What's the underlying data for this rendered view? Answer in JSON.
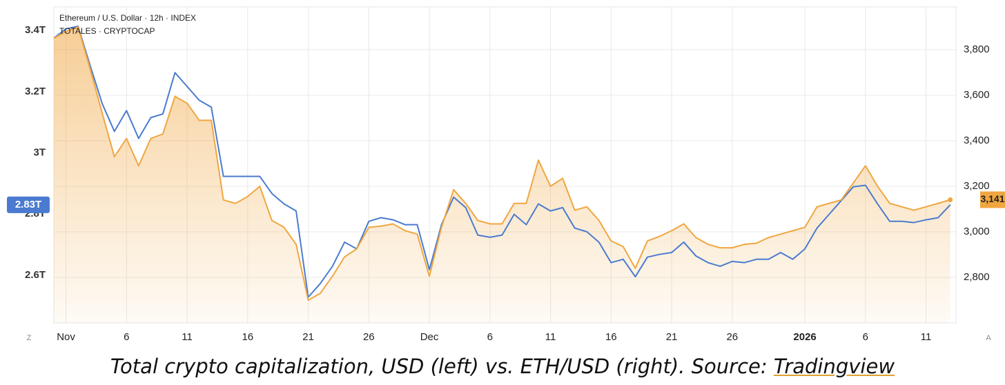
{
  "chart_data": {
    "type": "line",
    "categories": [
      null,
      "Nov",
      null,
      null,
      null,
      null,
      "6",
      null,
      null,
      null,
      null,
      "11",
      null,
      null,
      null,
      null,
      "16",
      null,
      null,
      null,
      null,
      "21",
      null,
      null,
      null,
      null,
      "26",
      null,
      null,
      null,
      null,
      "Dec",
      null,
      null,
      null,
      null,
      "6",
      null,
      null,
      null,
      null,
      "11",
      null,
      null,
      null,
      null,
      "16",
      null,
      null,
      null,
      null,
      "21",
      null,
      null,
      null,
      null,
      "26",
      null,
      null,
      null,
      null,
      null,
      "2026",
      null,
      null,
      null,
      null,
      "6",
      null,
      null,
      null,
      null,
      "11",
      null,
      null
    ],
    "series": [
      {
        "name": "Ethereum / U.S. Dollar · 12h · INDEX",
        "color": "#f0a640",
        "axis": "y2",
        "values": [
          3850,
          3880,
          3900,
          3715,
          3520,
          3330,
          3410,
          3290,
          3410,
          3430,
          3595,
          3565,
          3490,
          3490,
          3140,
          3125,
          3155,
          3200,
          3050,
          3020,
          2945,
          2700,
          2730,
          2805,
          2890,
          2925,
          3020,
          3025,
          3035,
          3005,
          2990,
          2805,
          3020,
          3185,
          3125,
          3050,
          3035,
          3035,
          3125,
          3125,
          3315,
          3200,
          3235,
          3095,
          3110,
          3050,
          2960,
          2935,
          2840,
          2960,
          2980,
          3005,
          3035,
          2975,
          2945,
          2930,
          2930,
          2945,
          2950,
          2975,
          2990,
          3005,
          3020,
          3110,
          3125,
          3140,
          3215,
          3290,
          3200,
          3125,
          3110,
          3095,
          3110,
          3125,
          3141
        ],
        "value_labels": [
          null,
          null,
          null,
          null,
          null,
          null,
          null,
          null,
          null,
          null,
          null,
          null,
          null,
          null,
          null,
          null,
          null,
          null,
          null,
          null,
          null,
          null,
          null,
          null,
          null,
          null,
          null,
          null,
          null,
          null,
          null,
          null,
          null,
          null,
          null,
          null,
          null,
          null,
          null,
          null,
          null,
          null,
          null,
          null,
          null,
          null,
          null,
          null,
          null,
          null,
          null,
          null,
          null,
          null,
          null,
          null,
          null,
          null,
          null,
          null,
          null,
          null,
          null,
          null,
          null,
          null,
          null,
          null,
          null,
          null,
          null,
          null,
          null,
          null,
          "3,141"
        ]
      },
      {
        "name": "TOTALES · CRYPTOCAP",
        "color": "#4a7bd0",
        "axis": "y",
        "values": [
          3.375,
          3.405,
          3.414,
          3.285,
          3.16,
          3.07,
          3.138,
          3.047,
          3.115,
          3.127,
          3.262,
          3.217,
          3.172,
          3.149,
          2.923,
          2.923,
          2.923,
          2.923,
          2.867,
          2.833,
          2.81,
          2.528,
          2.573,
          2.629,
          2.708,
          2.686,
          2.776,
          2.788,
          2.781,
          2.765,
          2.765,
          2.618,
          2.765,
          2.855,
          2.821,
          2.731,
          2.724,
          2.731,
          2.799,
          2.765,
          2.833,
          2.81,
          2.821,
          2.754,
          2.742,
          2.708,
          2.641,
          2.652,
          2.595,
          2.659,
          2.668,
          2.674,
          2.708,
          2.663,
          2.641,
          2.629,
          2.645,
          2.641,
          2.652,
          2.652,
          2.674,
          2.652,
          2.686,
          2.754,
          2.799,
          2.844,
          2.889,
          2.894,
          2.833,
          2.776,
          2.776,
          2.772,
          2.781,
          2.788,
          2.83
        ],
        "value_labels": [
          null,
          null,
          null,
          null,
          null,
          null,
          null,
          null,
          null,
          null,
          null,
          null,
          null,
          null,
          null,
          null,
          null,
          null,
          null,
          null,
          null,
          null,
          null,
          null,
          null,
          null,
          null,
          null,
          null,
          null,
          null,
          null,
          null,
          null,
          null,
          null,
          null,
          null,
          null,
          null,
          null,
          null,
          null,
          null,
          null,
          null,
          null,
          null,
          null,
          null,
          null,
          null,
          null,
          null,
          null,
          null,
          null,
          null,
          null,
          null,
          null,
          null,
          null,
          null,
          null,
          null,
          null,
          null,
          null,
          null,
          null,
          null,
          null,
          null,
          "2.83T"
        ]
      }
    ],
    "ylim": [
      2.444,
      3.477
    ],
    "yticks": [
      {
        "value": 2.6,
        "label": "2.6T"
      },
      {
        "value": 2.8,
        "label": "2.8T"
      },
      {
        "value": 3,
        "label": "3T"
      },
      {
        "value": 3.2,
        "label": "3.2T"
      },
      {
        "value": 3.4,
        "label": "3.4T"
      }
    ],
    "y2lim": [
      2600,
      3988
    ],
    "y2ticks": [
      {
        "value": 2800,
        "label": "2,800"
      },
      {
        "value": 3000,
        "label": "3,000"
      },
      {
        "value": 3200,
        "label": "3,200"
      },
      {
        "value": 3400,
        "label": "3,400"
      },
      {
        "value": 3600,
        "label": "3,600"
      },
      {
        "value": 3800,
        "label": "3,800"
      }
    ],
    "grid": true,
    "corner_buttons": [
      "Z",
      "A"
    ],
    "caption": "Total crypto capitalization, USD (left) vs. ETH/USD (right). Source:",
    "caption_link": "Tradingview"
  }
}
